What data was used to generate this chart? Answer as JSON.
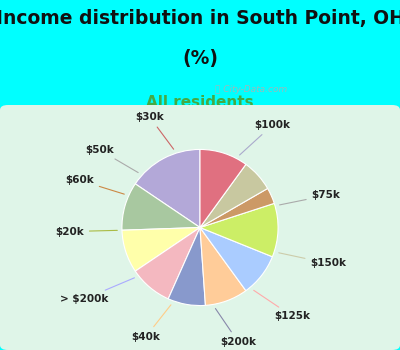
{
  "title_line1": "Income distribution in South Point, OH",
  "title_line2": "(%)",
  "subtitle": "All residents",
  "title_fontsize": 13.5,
  "subtitle_fontsize": 11,
  "bg_color": "#00FFFF",
  "chart_panel_color": "#e8f8ee",
  "labels": [
    "$100k",
    "$75k",
    "$150k",
    "$125k",
    "$200k",
    "$40k",
    "> $200k",
    "$20k",
    "$60k",
    "$50k",
    "$30k"
  ],
  "values": [
    14,
    9,
    8,
    8,
    7,
    8,
    8,
    10,
    3,
    6,
    9
  ],
  "colors": [
    "#b3a8d8",
    "#a8c8a0",
    "#ffffaa",
    "#f4b8c0",
    "#8899cc",
    "#ffcc99",
    "#aaccff",
    "#ccee66",
    "#cc9966",
    "#c8c8a0",
    "#e07080"
  ],
  "line_colors": [
    "#aaaacc",
    "#aaaaaa",
    "#ccccaa",
    "#ffaaaa",
    "#8888aa",
    "#ffcc88",
    "#aaaaff",
    "#aabb44",
    "#cc8844",
    "#aaaaaa",
    "#cc6666"
  ],
  "startangle": 90,
  "watermark": " City-Data.com"
}
